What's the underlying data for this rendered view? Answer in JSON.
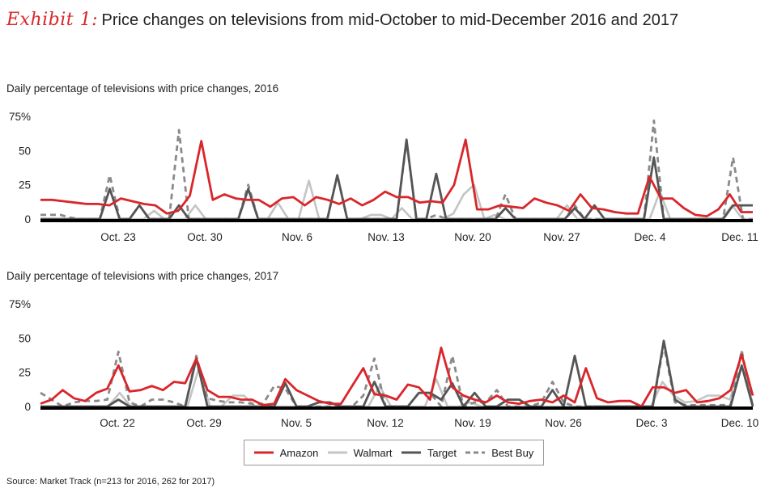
{
  "header": {
    "exhibit_label": "Exhibit 1:",
    "title": "Price changes on televisions from mid-October to mid-December 2016 and 2017"
  },
  "source": "Source: Market Track (n=213 for 2016, 262 for 2017)",
  "colors": {
    "Amazon": "#d9262b",
    "Walmart": "#c4c4c4",
    "Target": "#555555",
    "Best Buy": "#8a8a8a"
  },
  "legend": [
    {
      "name": "Amazon",
      "style": "solid"
    },
    {
      "name": "Walmart",
      "style": "solid"
    },
    {
      "name": "Target",
      "style": "solid"
    },
    {
      "name": "Best Buy",
      "style": "dashed"
    }
  ],
  "chart_data": [
    {
      "type": "line",
      "subtitle": "Daily percentage of televisions with price changes, 2016",
      "y_ticks": [
        "75%",
        "50",
        "25",
        "0"
      ],
      "ylim": [
        0,
        75
      ],
      "x_ticks": [
        "Oct. 23",
        "Oct. 30",
        "Nov. 6",
        "Nov. 13",
        "Nov. 20",
        "Nov. 27",
        "Dec. 4",
        "Dec. 11"
      ],
      "series": [
        {
          "name": "Amazon",
          "values": [
            14,
            14,
            13,
            12,
            11,
            11,
            10,
            15,
            13,
            11,
            10,
            4,
            6,
            17,
            57,
            14,
            18,
            15,
            14,
            14,
            9,
            15,
            16,
            10,
            16,
            14,
            11,
            15,
            10,
            14,
            20,
            16,
            16,
            12,
            13,
            12,
            25,
            58,
            7,
            7,
            10,
            9,
            8,
            15,
            12,
            10,
            6,
            18,
            8,
            7,
            5,
            4,
            4,
            31,
            15,
            15,
            8,
            3,
            2,
            7,
            18,
            5,
            5
          ],
          "note": ""
        },
        {
          "name": "Walmart",
          "values": [
            0,
            0,
            0,
            0,
            0,
            0,
            0,
            0,
            0,
            0,
            0,
            6,
            0,
            0,
            0,
            10,
            0,
            0,
            0,
            0,
            0,
            0,
            0,
            12,
            0,
            0,
            28,
            0,
            0,
            0,
            0,
            0,
            3,
            3,
            0,
            8,
            0,
            0,
            0,
            0,
            4,
            18,
            25,
            0,
            3,
            0,
            0,
            0,
            0,
            0,
            0,
            10,
            0,
            0,
            0,
            0,
            0,
            0,
            0,
            0,
            20,
            0,
            0,
            0,
            0,
            0,
            0,
            10,
            0,
            0
          ]
        },
        {
          "name": "Target",
          "values": [
            0,
            0,
            0,
            0,
            0,
            0,
            0,
            22,
            0,
            0,
            10,
            0,
            0,
            0,
            10,
            0,
            0,
            0,
            0,
            0,
            0,
            22,
            0,
            0,
            0,
            0,
            0,
            0,
            0,
            0,
            32,
            0,
            0,
            0,
            0,
            0,
            0,
            58,
            0,
            0,
            33,
            0,
            0,
            0,
            0,
            0,
            0,
            8,
            0,
            0,
            0,
            0,
            0,
            0,
            8,
            0,
            10,
            0,
            0,
            0,
            0,
            0,
            45,
            0,
            0,
            0,
            0,
            0,
            0,
            0,
            10,
            10,
            10
          ]
        },
        {
          "name": "Best Buy",
          "values": [
            3,
            3,
            3,
            1,
            0,
            0,
            0,
            32,
            0,
            0,
            10,
            0,
            0,
            0,
            65,
            0,
            0,
            0,
            0,
            0,
            0,
            25,
            0,
            0,
            0,
            0,
            0,
            0,
            0,
            0,
            32,
            0,
            0,
            0,
            0,
            0,
            0,
            57,
            0,
            0,
            3,
            0,
            0,
            0,
            0,
            0,
            0,
            18,
            0,
            0,
            0,
            0,
            0,
            0,
            10,
            0,
            0,
            0,
            0,
            0,
            0,
            0,
            72,
            0,
            0,
            0,
            0,
            0,
            0,
            0,
            45,
            0,
            0
          ]
        }
      ]
    },
    {
      "type": "line",
      "subtitle": "Daily percentage of televisions with price changes, 2017",
      "y_ticks": [
        "75%",
        "50",
        "25",
        "0"
      ],
      "ylim": [
        0,
        75
      ],
      "x_ticks": [
        "Oct. 22",
        "Oct. 29",
        "Nov. 5",
        "Nov. 12",
        "Nov. 19",
        "Nov. 26",
        "Dec. 3",
        "Dec. 10"
      ],
      "series": [
        {
          "name": "Amazon",
          "values": [
            2,
            5,
            12,
            6,
            4,
            10,
            13,
            30,
            11,
            12,
            15,
            12,
            18,
            17,
            35,
            12,
            7,
            7,
            5,
            5,
            1,
            2,
            20,
            12,
            8,
            4,
            2,
            2,
            15,
            28,
            9,
            8,
            5,
            16,
            14,
            5,
            43,
            14,
            8,
            5,
            3,
            8,
            3,
            2,
            4,
            5,
            3,
            8,
            3,
            28,
            6,
            3,
            4,
            4,
            0,
            14,
            14,
            10,
            12,
            3,
            4,
            6,
            12,
            38,
            8
          ]
        },
        {
          "name": "Walmart",
          "values": [
            0,
            0,
            0,
            0,
            0,
            0,
            0,
            10,
            0,
            0,
            0,
            0,
            0,
            0,
            28,
            0,
            0,
            8,
            8,
            0,
            0,
            0,
            0,
            0,
            0,
            0,
            0,
            0,
            0,
            0,
            15,
            0,
            0,
            0,
            0,
            20,
            0,
            0,
            3,
            0,
            0,
            0,
            0,
            0,
            0,
            0,
            0,
            0,
            0,
            0,
            0,
            0,
            0,
            0,
            0,
            18,
            8,
            3,
            4,
            8,
            8,
            5,
            40,
            0
          ]
        },
        {
          "name": "Target",
          "values": [
            0,
            0,
            0,
            0,
            0,
            0,
            0,
            5,
            0,
            0,
            0,
            0,
            0,
            0,
            35,
            0,
            0,
            0,
            0,
            0,
            0,
            0,
            17,
            0,
            0,
            3,
            3,
            0,
            0,
            0,
            18,
            0,
            0,
            0,
            10,
            10,
            5,
            17,
            0,
            10,
            0,
            0,
            5,
            5,
            0,
            0,
            12,
            0,
            37,
            0,
            0,
            0,
            0,
            0,
            0,
            0,
            48,
            5,
            0,
            0,
            0,
            0,
            0,
            30,
            0
          ]
        },
        {
          "name": "Best Buy",
          "values": [
            10,
            5,
            0,
            3,
            4,
            4,
            5,
            40,
            3,
            0,
            5,
            5,
            3,
            0,
            37,
            6,
            4,
            3,
            3,
            2,
            2,
            15,
            13,
            0,
            0,
            0,
            0,
            0,
            0,
            8,
            35,
            0,
            0,
            0,
            10,
            10,
            0,
            37,
            0,
            3,
            3,
            12,
            0,
            0,
            0,
            3,
            18,
            3,
            0,
            0,
            0,
            0,
            0,
            0,
            0,
            0,
            45,
            3,
            1,
            1,
            1,
            1,
            1,
            41,
            0
          ]
        }
      ]
    }
  ]
}
